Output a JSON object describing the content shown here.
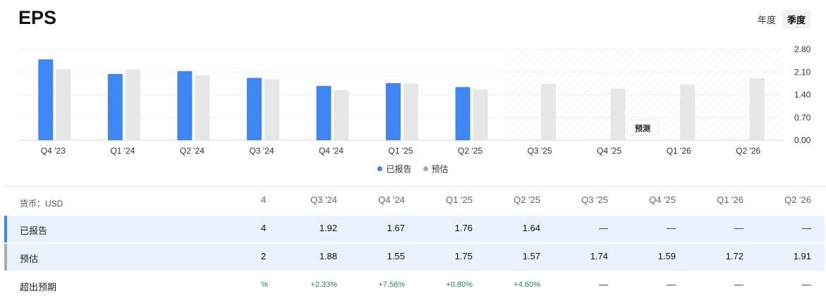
{
  "header": {
    "title": "EPS"
  },
  "toggle": {
    "annual": "年度",
    "quarterly": "季度",
    "active": "quarterly"
  },
  "colors": {
    "reported": "#3f86f5",
    "estimate": "#e6e6e6",
    "forecast_hatch": "#eeeeee",
    "positive": "#1a8f4e"
  },
  "chart_data": {
    "type": "bar",
    "categories": [
      "Q4 '23",
      "Q1 '24",
      "Q2 '24",
      "Q3 '24",
      "Q4 '24",
      "Q1 '25",
      "Q2 '25",
      "Q3 '25",
      "Q4 '25",
      "Q1 '26",
      "Q2 '26"
    ],
    "series": [
      {
        "name": "已报告",
        "values": [
          2.49,
          2.04,
          2.13,
          1.92,
          1.67,
          1.76,
          1.64,
          null,
          null,
          null,
          null
        ]
      },
      {
        "name": "预估",
        "values": [
          2.19,
          2.18,
          2.01,
          1.88,
          1.55,
          1.75,
          1.57,
          1.74,
          1.59,
          1.72,
          1.91
        ]
      }
    ],
    "y_ticks": [
      "2.80",
      "2.10",
      "1.40",
      "0.70",
      "0.00"
    ],
    "ylim": [
      0,
      2.8
    ],
    "forecast_start_index": 7,
    "forecast_label": "预测",
    "legend_position": "bottom-center",
    "grid": true
  },
  "legend": {
    "reported": "已报告",
    "estimate": "预估"
  },
  "table": {
    "currency_label": "货币：USD",
    "clipped": {
      "header": "4",
      "reported": "4",
      "estimate": "2",
      "surprise": "%"
    },
    "columns": [
      "Q3 '24",
      "Q4 '24",
      "Q1 '25",
      "Q2 '25",
      "Q3 '25",
      "Q4 '25",
      "Q1 '26",
      "Q2 '26"
    ],
    "rows": {
      "reported": {
        "label": "已报告",
        "values": [
          "1.92",
          "1.67",
          "1.76",
          "1.64",
          "—",
          "—",
          "—",
          "—"
        ]
      },
      "estimate": {
        "label": "预估",
        "values": [
          "1.88",
          "1.55",
          "1.75",
          "1.57",
          "1.74",
          "1.59",
          "1.72",
          "1.91"
        ]
      },
      "surprise": {
        "label": "超出预期",
        "values": [
          "+2.33%",
          "+7.56%",
          "+0.80%",
          "+4.60%",
          "—",
          "—",
          "—",
          "—"
        ]
      }
    }
  }
}
